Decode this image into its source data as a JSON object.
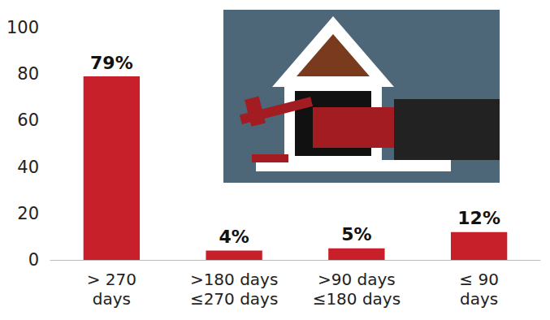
{
  "chart_data": {
    "type": "bar",
    "categories": [
      "> 270 days",
      ">180 days ≤270 days",
      ">90 days ≤180 days",
      "≤ 90 days"
    ],
    "values": [
      79,
      4,
      5,
      12
    ],
    "value_labels": [
      "79%",
      "4%",
      "5%",
      "12%"
    ],
    "color": "#c8202a",
    "ylim": [
      0,
      100
    ],
    "yticks": [
      0,
      20,
      40,
      60,
      80,
      100
    ],
    "grid": false,
    "data_labels": true
  }
}
